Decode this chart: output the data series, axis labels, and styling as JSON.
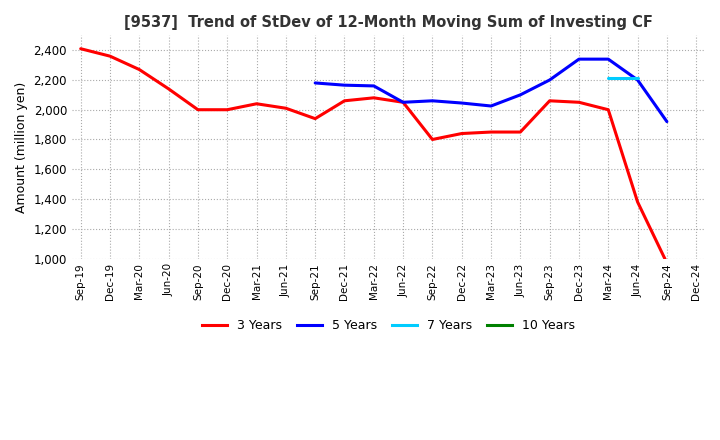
{
  "title": "[9537]  Trend of StDev of 12-Month Moving Sum of Investing CF",
  "ylabel": "Amount (million yen)",
  "ylim": [
    1000,
    2500
  ],
  "yticks": [
    1000,
    1200,
    1400,
    1600,
    1800,
    2000,
    2200,
    2400
  ],
  "x_labels": [
    "Sep-19",
    "Dec-19",
    "Mar-20",
    "Jun-20",
    "Sep-20",
    "Dec-20",
    "Mar-21",
    "Jun-21",
    "Sep-21",
    "Dec-21",
    "Mar-22",
    "Jun-22",
    "Sep-22",
    "Dec-22",
    "Mar-23",
    "Jun-23",
    "Sep-23",
    "Dec-23",
    "Mar-24",
    "Jun-24",
    "Sep-24",
    "Dec-24"
  ],
  "series": {
    "3 Years": {
      "color": "#ff0000",
      "data": [
        2410,
        2360,
        2270,
        2140,
        2000,
        2000,
        2040,
        2010,
        1940,
        2060,
        2080,
        2050,
        1800,
        1840,
        1850,
        1850,
        2060,
        2050,
        2000,
        1380,
        970,
        null
      ]
    },
    "5 Years": {
      "color": "#0000ff",
      "data": [
        null,
        null,
        null,
        null,
        null,
        null,
        null,
        null,
        2180,
        2165,
        2160,
        2050,
        2060,
        2045,
        2025,
        2100,
        2200,
        2340,
        2340,
        2200,
        1920,
        null
      ]
    },
    "7 Years": {
      "color": "#00ccff",
      "data": [
        null,
        null,
        null,
        null,
        null,
        null,
        null,
        null,
        null,
        null,
        null,
        null,
        null,
        null,
        null,
        null,
        null,
        null,
        2210,
        2210,
        null,
        null
      ]
    },
    "10 Years": {
      "color": "#008000",
      "data": [
        null,
        null,
        null,
        null,
        null,
        null,
        null,
        null,
        null,
        null,
        null,
        null,
        null,
        null,
        null,
        null,
        null,
        null,
        null,
        null,
        null,
        null
      ]
    }
  },
  "legend_labels": [
    "3 Years",
    "5 Years",
    "7 Years",
    "10 Years"
  ],
  "legend_colors": [
    "#ff0000",
    "#0000ff",
    "#00ccff",
    "#008000"
  ],
  "background_color": "#ffffff",
  "grid_color": "#aaaaaa"
}
